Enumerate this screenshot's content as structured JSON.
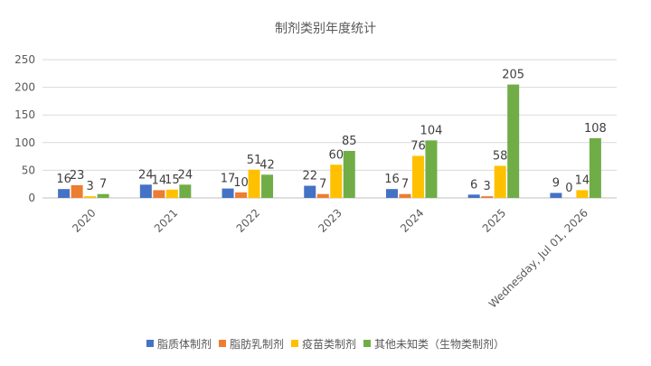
{
  "chart_data": {
    "type": "bar",
    "title": "制剂类别年度统计",
    "xlabel": "",
    "ylabel": "",
    "ylim": [
      0,
      250
    ],
    "yticks": [
      0,
      50,
      100,
      150,
      200,
      250
    ],
    "grid": true,
    "legend": "bottom",
    "categories": [
      "2020",
      "2021",
      "2022",
      "2023",
      "2024",
      "2025",
      "Wednesday, Jul 01, 2026"
    ],
    "series": [
      {
        "name": "脂质体制剂",
        "color": "#4472c4",
        "values": [
          16,
          24,
          17,
          22,
          16,
          6,
          9
        ]
      },
      {
        "name": "脂肪乳制剂",
        "color": "#ed7d31",
        "values": [
          23,
          14,
          10,
          7,
          7,
          3,
          0
        ]
      },
      {
        "name": "疫苗类制剂",
        "color": "#ffc000",
        "values": [
          3,
          15,
          51,
          60,
          76,
          58,
          14
        ]
      },
      {
        "name": "其他未知类（生物类制剂）",
        "color": "#70ad47",
        "values": [
          7,
          24,
          42,
          85,
          104,
          205,
          108
        ]
      }
    ]
  }
}
